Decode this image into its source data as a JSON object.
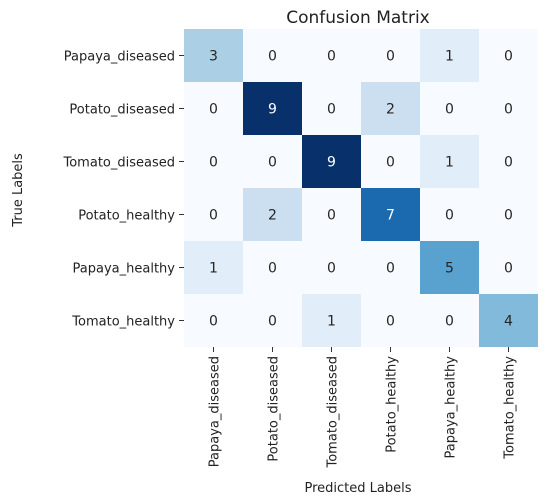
{
  "chart_data": {
    "type": "heatmap",
    "title": "Confusion Matrix",
    "xlabel": "Predicted Labels",
    "ylabel": "True Labels",
    "row_labels": [
      "Papaya_diseased",
      "Potato_diseased",
      "Tomato_diseased",
      "Potato_healthy",
      "Papaya_healthy",
      "Tomato_healthy"
    ],
    "col_labels": [
      "Papaya_diseased",
      "Potato_diseased",
      "Tomato_diseased",
      "Potato_healthy",
      "Papaya_healthy",
      "Tomato_healthy"
    ],
    "values": [
      [
        3,
        0,
        0,
        0,
        1,
        0
      ],
      [
        0,
        9,
        0,
        2,
        0,
        0
      ],
      [
        0,
        0,
        9,
        0,
        1,
        0
      ],
      [
        0,
        2,
        0,
        7,
        0,
        0
      ],
      [
        1,
        0,
        0,
        0,
        5,
        0
      ],
      [
        0,
        0,
        1,
        0,
        0,
        4
      ]
    ],
    "vmin": 0,
    "vmax": 9,
    "colormap": "Blues",
    "annotations": true,
    "colorbar": false
  }
}
